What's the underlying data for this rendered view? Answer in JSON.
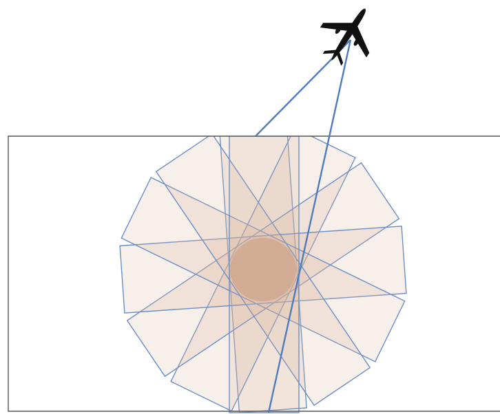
{
  "diagram": {
    "strip_count": 6,
    "colors": {
      "strip_fill": "#d9b49c",
      "strip_stroke": "#6a8fc6",
      "frame_stroke": "#555555",
      "core_fill": "#c79a82",
      "ray_stroke": "#4f7bbd",
      "aircraft_fill": "#111111",
      "background": "#ffffff"
    },
    "icons": [
      "aircraft-icon"
    ]
  }
}
